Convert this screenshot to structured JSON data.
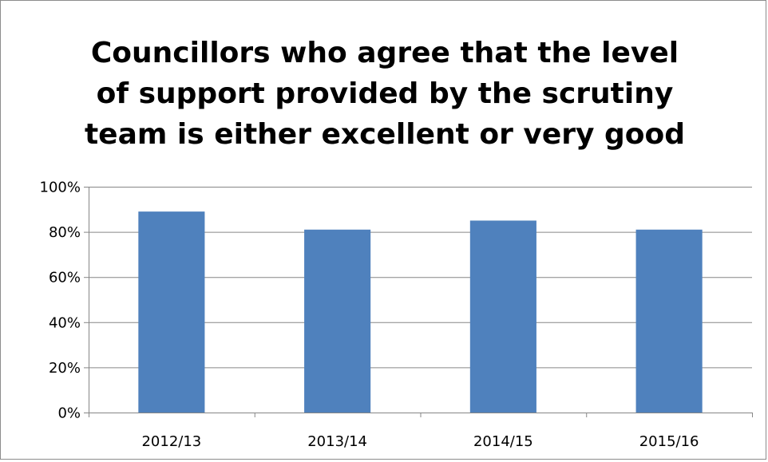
{
  "chart_data": {
    "type": "bar",
    "title_lines": [
      "Councillors who agree that the level",
      "of support provided by the scrutiny",
      "team is either excellent or very good"
    ],
    "categories": [
      "2012/13",
      "2013/14",
      "2014/15",
      "2015/16"
    ],
    "values": [
      89,
      81,
      85,
      81
    ],
    "value_unit": "%",
    "yticks": [
      "0%",
      "20%",
      "40%",
      "60%",
      "80%",
      "100%"
    ],
    "ylim": [
      0,
      100
    ],
    "xlabel": "",
    "ylabel": "",
    "grid": true,
    "legend": "none",
    "bar_color": "#4f81bd",
    "grid_color": "#868686"
  }
}
